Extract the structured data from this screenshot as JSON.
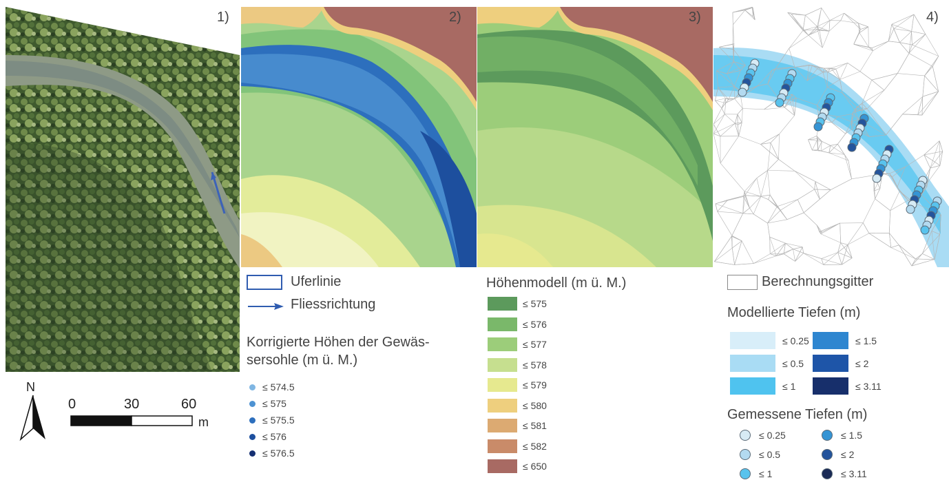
{
  "panels": [
    {
      "label": "1)"
    },
    {
      "label": "2)"
    },
    {
      "label": "3)"
    },
    {
      "label": "4)"
    }
  ],
  "scalebar": {
    "north": "N",
    "ticks": [
      "0",
      "30",
      "60"
    ],
    "unit": "m"
  },
  "legend2": {
    "uferlinie": "Uferlinie",
    "fliessrichtung": "Fliessrichtung",
    "title": "Korrigierte Höhen der Gewäs-\nsersohle (m ü. M.)",
    "items": [
      {
        "label": "≤ 574.5",
        "color": "#7fb6e3"
      },
      {
        "label": "≤ 575",
        "color": "#4d92d2"
      },
      {
        "label": "≤ 575.5",
        "color": "#2d6fbd"
      },
      {
        "label": "≤ 576",
        "color": "#1d4f9e"
      },
      {
        "label": "≤ 576.5",
        "color": "#152f72"
      }
    ]
  },
  "legend3": {
    "title": "Höhenmodell (m ü. M.)",
    "items": [
      {
        "label": "≤ 575",
        "color": "#5c9a5c"
      },
      {
        "label": "≤ 576",
        "color": "#7ab86a"
      },
      {
        "label": "≤ 577",
        "color": "#9ccd7a"
      },
      {
        "label": "≤ 578",
        "color": "#c6df8f"
      },
      {
        "label": "≤ 579",
        "color": "#e6e98f"
      },
      {
        "label": "≤ 580",
        "color": "#eecf7e"
      },
      {
        "label": "≤ 581",
        "color": "#dcaa72"
      },
      {
        "label": "≤ 582",
        "color": "#c98b69"
      },
      {
        "label": "≤ 650",
        "color": "#a86a63"
      }
    ]
  },
  "legend4": {
    "gitter": "Berechnungsgitter",
    "modelled_title": "Modellierte Tiefen (m)",
    "modelled": [
      {
        "label": "≤ 0.25",
        "color": "#d8eef9"
      },
      {
        "label": "≤ 1.5",
        "color": "#2e86d0"
      },
      {
        "label": "≤ 0.5",
        "color": "#a9dcf4"
      },
      {
        "label": "≤ 2",
        "color": "#1e55a8"
      },
      {
        "label": "≤ 1",
        "color": "#4fc3ef"
      },
      {
        "label": "≤ 3.11",
        "color": "#172f6b"
      }
    ],
    "measured_title": "Gemessene Tiefen (m)",
    "measured": [
      {
        "label": "≤ 0.25",
        "color": "#d7ebf5"
      },
      {
        "label": "≤ 1.5",
        "color": "#3594d4"
      },
      {
        "label": "≤ 0.5",
        "color": "#b3daf0"
      },
      {
        "label": "≤ 2",
        "color": "#24549c"
      },
      {
        "label": "≤ 1",
        "color": "#59c3ed"
      },
      {
        "label": "≤ 3.11",
        "color": "#1a2a55"
      }
    ]
  }
}
